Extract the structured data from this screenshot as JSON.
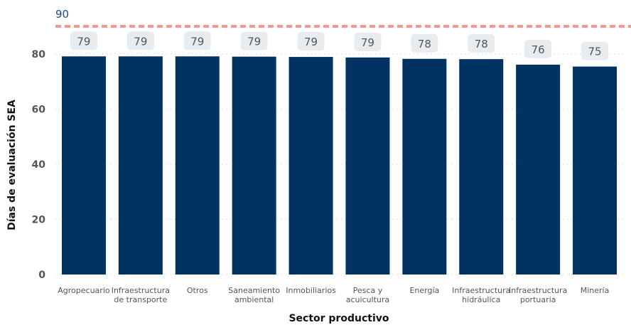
{
  "chart_data": {
    "type": "bar",
    "categories": [
      [
        "Agropecuario"
      ],
      [
        "Infraestructura",
        "de transporte"
      ],
      [
        "Otros"
      ],
      [
        "Saneamiento",
        "ambiental"
      ],
      [
        "Inmobiliarios"
      ],
      [
        "Pesca y",
        "acuicultura"
      ],
      [
        "Energía"
      ],
      [
        "Infraestructura",
        "hidráulica"
      ],
      [
        "Infraestructura",
        "portuaria"
      ],
      [
        "Minería"
      ]
    ],
    "values": [
      79.1,
      79.1,
      79.1,
      79.0,
      78.9,
      78.7,
      78.2,
      78.1,
      76.1,
      75.4
    ],
    "data_labels": [
      "79",
      "79",
      "79",
      "79",
      "79",
      "79",
      "78",
      "78",
      "76",
      "75"
    ],
    "xlabel": "Sector productivo",
    "ylabel": "Días de evaluación SEA",
    "ylim": [
      0,
      90
    ],
    "yticks": [
      0,
      20,
      40,
      60,
      80
    ],
    "reference_line": {
      "value": 90,
      "label": "90"
    },
    "grid": true,
    "colors": {
      "bar": "#003262",
      "reference_line": "#f4978e",
      "reference_label": "#1a4c8b",
      "data_label_bg": "#e9ecef",
      "grid": "#c8c8c8"
    }
  }
}
